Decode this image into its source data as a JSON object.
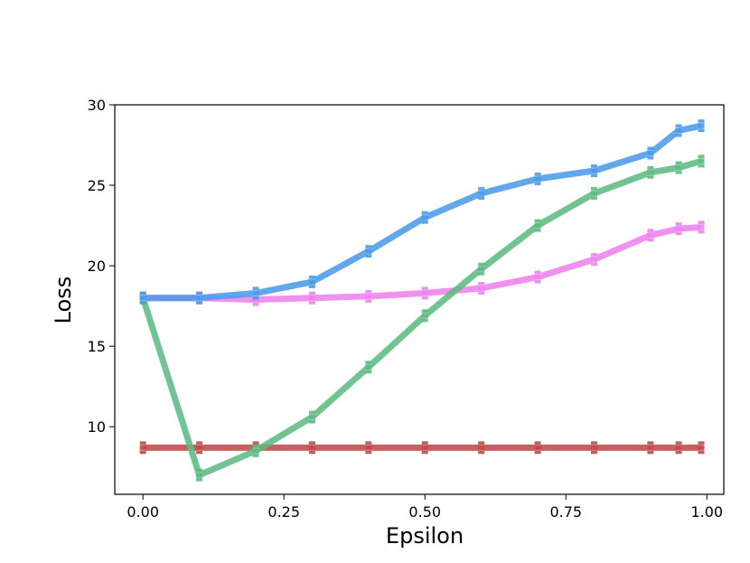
{
  "chart_data": {
    "type": "line",
    "title": "",
    "xlabel": "Epsilon",
    "ylabel": "Loss",
    "xlim": [
      -0.05,
      1.03
    ],
    "ylim": [
      5.8,
      30
    ],
    "xticks": [
      0.0,
      0.25,
      0.5,
      0.75,
      1.0
    ],
    "xtick_labels": [
      "0.00",
      "0.25",
      "0.50",
      "0.75",
      "1.00"
    ],
    "yticks": [
      10,
      15,
      20,
      25,
      30
    ],
    "ytick_labels": [
      "10",
      "15",
      "20",
      "25",
      "30"
    ],
    "grid": false,
    "legend": "none",
    "x": [
      0.0,
      0.1,
      0.2,
      0.3,
      0.4,
      0.5,
      0.6,
      0.7,
      0.8,
      0.9,
      0.95,
      0.99
    ],
    "series": [
      {
        "color": "#4c9be8",
        "values": [
          18.0,
          18.0,
          18.3,
          19.0,
          20.9,
          23.0,
          24.5,
          25.4,
          25.9,
          27.0,
          28.4,
          28.7
        ]
      },
      {
        "color": "#ee82ee",
        "values": [
          18.0,
          18.0,
          17.9,
          18.0,
          18.1,
          18.3,
          18.6,
          19.3,
          20.4,
          21.9,
          22.3,
          22.4
        ]
      },
      {
        "color": "#5dbb82",
        "values": [
          18.0,
          7.0,
          8.5,
          10.6,
          13.7,
          16.9,
          19.8,
          22.5,
          24.5,
          25.8,
          26.1,
          26.5
        ]
      },
      {
        "color": "#bf4a4a",
        "values": [
          8.7,
          8.7,
          8.7,
          8.7,
          8.7,
          8.7,
          8.7,
          8.7,
          8.7,
          8.7,
          8.7,
          8.7
        ]
      }
    ]
  }
}
